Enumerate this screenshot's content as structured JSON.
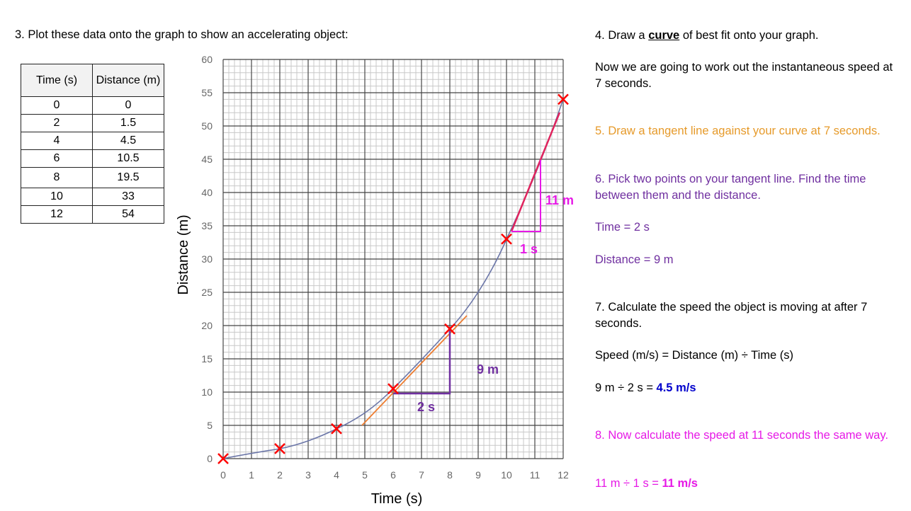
{
  "left": {
    "question3": "3. Plot these data onto the graph to show an accelerating object:",
    "table": {
      "headers": [
        "Time (s)",
        "Distance (m)"
      ],
      "rows": [
        [
          "0",
          "0"
        ],
        [
          "2",
          "1.5"
        ],
        [
          "4",
          "4.5"
        ],
        [
          "6",
          "10.5"
        ],
        [
          "8",
          "19.5"
        ],
        [
          "10",
          "33"
        ],
        [
          "12",
          "54"
        ]
      ]
    }
  },
  "right": {
    "q4_prefix": "4. Draw a ",
    "q4_emph": "curve",
    "q4_suffix": " of best fit onto your graph.",
    "intro": "Now we are going to work out the instantaneous speed at 7 seconds.",
    "q5": "5. Draw a tangent line against your curve at 7 seconds.",
    "q6": "6. Pick two points on your tangent line. Find the time between them and the distance.",
    "time_answer": "Time = 2 s",
    "distance_answer": "Distance = 9 m",
    "q7": "7. Calculate the speed the object is moving at after 7 seconds.",
    "formula": "Speed (m/s) = Distance (m) ÷ Time (s)",
    "calc7_prefix": "9 m ÷ 2 s = ",
    "calc7_result": "4.5 m/s",
    "q8": "8. Now calculate the speed at 11 seconds the same way.",
    "calc11_prefix": "11 m ÷ 1 s = ",
    "calc11_result": "11 m/s"
  },
  "colors": {
    "points": "#ff0000",
    "curve": "#6b76a8",
    "tangent7": "#ed7d31",
    "triangle7": "#7030a0",
    "tangent11": "#e0245e",
    "triangle11": "#e619e6",
    "q5_text": "#e69a2a",
    "q6_text": "#7030a0",
    "q8_text": "#e619e6",
    "result7": "#0000cc"
  },
  "chart_data": {
    "type": "scatter",
    "title": "",
    "xlabel": "Time (s)",
    "ylabel": "Distance (m)",
    "xlim": [
      0,
      12
    ],
    "ylim": [
      0,
      60
    ],
    "x_ticks": [
      "0",
      "1",
      "2",
      "3",
      "4",
      "5",
      "6",
      "7",
      "8",
      "9",
      "10",
      "11",
      "12"
    ],
    "y_ticks": [
      "0",
      "5",
      "10",
      "15",
      "20",
      "25",
      "30",
      "35",
      "40",
      "45",
      "50",
      "55",
      "60"
    ],
    "grid": true,
    "series": [
      {
        "name": "Measured points",
        "marker": "x",
        "x": [
          0,
          2,
          4,
          6,
          8,
          10,
          12
        ],
        "y": [
          0,
          1.5,
          4.5,
          10.5,
          19.5,
          33,
          54
        ]
      },
      {
        "name": "Curve of best fit",
        "style": "line",
        "x": [
          0,
          2,
          4,
          6,
          8,
          10,
          12
        ],
        "y": [
          0,
          1.5,
          4.5,
          10.5,
          19.5,
          33,
          54
        ]
      },
      {
        "name": "Tangent at 7 s",
        "style": "line",
        "x": [
          4.9,
          8.6
        ],
        "y": [
          5,
          21.5
        ]
      },
      {
        "name": "Tangent at 11 s",
        "style": "line",
        "x": [
          10.1,
          11.9
        ],
        "y": [
          34,
          52
        ]
      }
    ],
    "annotations": [
      {
        "text": "2 s",
        "type": "triangle-base",
        "from": [
          6,
          10
        ],
        "to": [
          8,
          10
        ]
      },
      {
        "text": "9 m",
        "type": "triangle-height",
        "from": [
          8,
          10
        ],
        "to": [
          8,
          19.5
        ]
      },
      {
        "text": "1 s",
        "type": "triangle-base",
        "from": [
          10.2,
          34
        ],
        "to": [
          11.2,
          34
        ]
      },
      {
        "text": "11 m",
        "type": "triangle-height",
        "from": [
          11.2,
          34
        ],
        "to": [
          11.2,
          45
        ]
      }
    ]
  }
}
